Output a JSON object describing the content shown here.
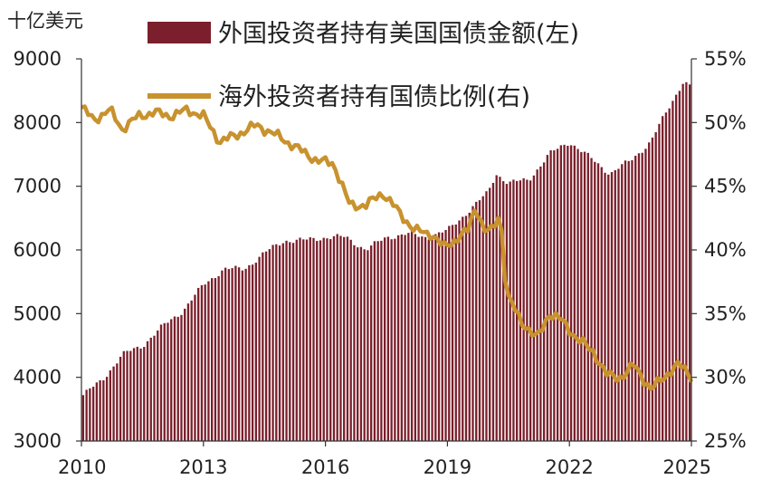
{
  "chart_data": {
    "type": "bar+line",
    "left_axis_unit": "十亿美元",
    "x_ticks": [
      "2010",
      "2013",
      "2016",
      "2019",
      "2022",
      "2025"
    ],
    "y_left_ticks": [
      "3000",
      "4000",
      "5000",
      "6000",
      "7000",
      "8000",
      "9000"
    ],
    "y_right_ticks": [
      "25%",
      "30%",
      "35%",
      "40%",
      "45%",
      "50%",
      "55%"
    ],
    "ylim_left": [
      3000,
      9000
    ],
    "ylim_right": [
      25,
      55
    ],
    "xlim": [
      2010.0,
      2025.0
    ],
    "bar_color": "#7a1f2b",
    "line_color": "#c8922e",
    "series": [
      {
        "name": "外国投资者持有美国国债金额(左)",
        "axis": "left",
        "style": "bar",
        "anchors": [
          [
            2010.0,
            3700
          ],
          [
            2010.5,
            3950
          ],
          [
            2011.0,
            4350
          ],
          [
            2011.5,
            4500
          ],
          [
            2012.0,
            4800
          ],
          [
            2012.5,
            5050
          ],
          [
            2013.0,
            5450
          ],
          [
            2013.5,
            5700
          ],
          [
            2014.0,
            5700
          ],
          [
            2014.5,
            5950
          ],
          [
            2015.0,
            6150
          ],
          [
            2015.5,
            6150
          ],
          [
            2016.0,
            6200
          ],
          [
            2016.5,
            6200
          ],
          [
            2017.0,
            6000
          ],
          [
            2017.5,
            6200
          ],
          [
            2018.0,
            6250
          ],
          [
            2018.5,
            6200
          ],
          [
            2019.0,
            6300
          ],
          [
            2019.5,
            6600
          ],
          [
            2020.0,
            6900
          ],
          [
            2020.2,
            7200
          ],
          [
            2020.5,
            7050
          ],
          [
            2021.0,
            7100
          ],
          [
            2021.5,
            7500
          ],
          [
            2022.0,
            7700
          ],
          [
            2022.5,
            7450
          ],
          [
            2023.0,
            7200
          ],
          [
            2023.5,
            7400
          ],
          [
            2024.0,
            7700
          ],
          [
            2024.5,
            8300
          ],
          [
            2024.8,
            8650
          ],
          [
            2025.0,
            8550
          ]
        ]
      },
      {
        "name": "海外投资者持有国债比例(右)",
        "axis": "right",
        "style": "line",
        "anchors": [
          [
            2010.0,
            51.2
          ],
          [
            2010.3,
            50.2
          ],
          [
            2010.7,
            51.0
          ],
          [
            2011.0,
            49.5
          ],
          [
            2011.4,
            50.5
          ],
          [
            2011.8,
            50.8
          ],
          [
            2012.2,
            50.5
          ],
          [
            2012.6,
            51.0
          ],
          [
            2013.0,
            50.5
          ],
          [
            2013.4,
            48.5
          ],
          [
            2013.8,
            49.0
          ],
          [
            2014.3,
            49.8
          ],
          [
            2014.8,
            49.0
          ],
          [
            2015.3,
            48.0
          ],
          [
            2015.8,
            47.0
          ],
          [
            2016.2,
            46.8
          ],
          [
            2016.6,
            43.5
          ],
          [
            2017.0,
            43.5
          ],
          [
            2017.4,
            44.5
          ],
          [
            2017.8,
            43.0
          ],
          [
            2018.2,
            41.5
          ],
          [
            2018.6,
            41.3
          ],
          [
            2018.9,
            40.2
          ],
          [
            2019.2,
            40.8
          ],
          [
            2019.5,
            41.5
          ],
          [
            2019.7,
            43.5
          ],
          [
            2019.9,
            41.5
          ],
          [
            2020.1,
            41.5
          ],
          [
            2020.3,
            43.0
          ],
          [
            2020.45,
            36.5
          ],
          [
            2020.8,
            34.5
          ],
          [
            2021.2,
            33.0
          ],
          [
            2021.5,
            35.0
          ],
          [
            2021.8,
            34.5
          ],
          [
            2022.2,
            33.0
          ],
          [
            2022.6,
            32.0
          ],
          [
            2022.9,
            30.2
          ],
          [
            2023.3,
            30.0
          ],
          [
            2023.6,
            31.0
          ],
          [
            2024.0,
            29.0
          ],
          [
            2024.3,
            30.0
          ],
          [
            2024.7,
            31.0
          ],
          [
            2024.9,
            30.5
          ],
          [
            2025.0,
            30.0
          ]
        ]
      }
    ]
  }
}
